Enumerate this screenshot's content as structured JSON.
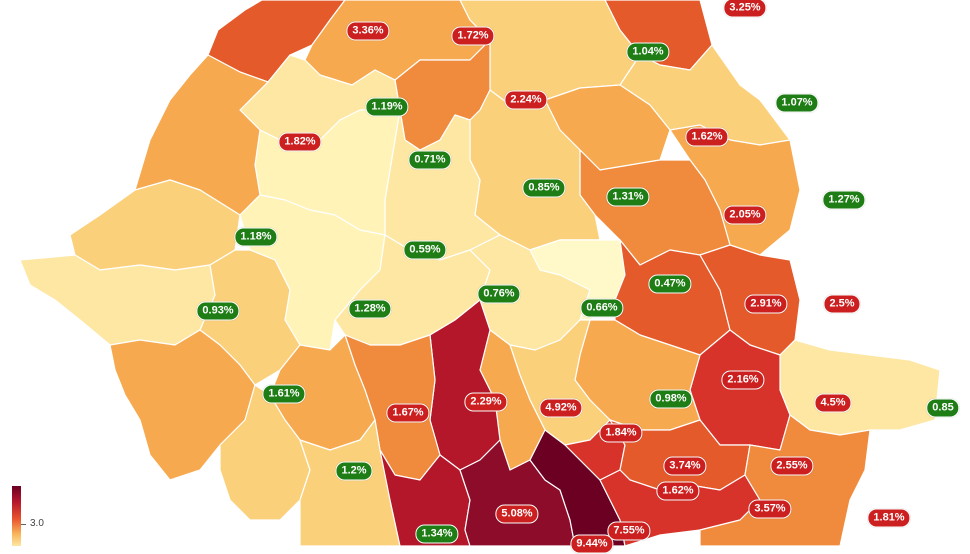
{
  "legend": {
    "tick_label": "3.0"
  },
  "colors": {
    "up_badge": "#cc1f1f",
    "down_badge": "#1e7d14",
    "very_light": "#fff8c8",
    "light": "#fde7a3",
    "light_orange": "#fbd07a",
    "orange": "#f6a94f",
    "dark_orange": "#f08a3c",
    "red_orange": "#e55a2a",
    "red": "#d8332a",
    "dark_red": "#b5172a",
    "crimson": "#8c0c2a",
    "maroon": "#6b0023"
  },
  "badges": [
    {
      "label": "3.36%",
      "trend": "up"
    },
    {
      "label": "1.72%",
      "trend": "up"
    },
    {
      "label": "3.25%",
      "trend": "up"
    },
    {
      "label": "1.04%",
      "trend": "down"
    },
    {
      "label": "1.19%",
      "trend": "down"
    },
    {
      "label": "2.24%",
      "trend": "up"
    },
    {
      "label": "1.07%",
      "trend": "down"
    },
    {
      "label": "1.82%",
      "trend": "up"
    },
    {
      "label": "1.62%",
      "trend": "up"
    },
    {
      "label": "0.71%",
      "trend": "down"
    },
    {
      "label": "0.85%",
      "trend": "down"
    },
    {
      "label": "1.31%",
      "trend": "down"
    },
    {
      "label": "1.27%",
      "trend": "down"
    },
    {
      "label": "2.05%",
      "trend": "up"
    },
    {
      "label": "1.18%",
      "trend": "down"
    },
    {
      "label": "0.59%",
      "trend": "down"
    },
    {
      "label": "0.76%",
      "trend": "down"
    },
    {
      "label": "0.47%",
      "trend": "down"
    },
    {
      "label": "0.66%",
      "trend": "down"
    },
    {
      "label": "0.93%",
      "trend": "down"
    },
    {
      "label": "1.28%",
      "trend": "down"
    },
    {
      "label": "2.91%",
      "trend": "up"
    },
    {
      "label": "2.5%",
      "trend": "up"
    },
    {
      "label": "2.16%",
      "trend": "up"
    },
    {
      "label": "1.61%",
      "trend": "down"
    },
    {
      "label": "1.67%",
      "trend": "up"
    },
    {
      "label": "2.29%",
      "trend": "up"
    },
    {
      "label": "4.92%",
      "trend": "up"
    },
    {
      "label": "0.98%",
      "trend": "down"
    },
    {
      "label": "4.5%",
      "trend": "up"
    },
    {
      "label": "0.85",
      "trend": "down"
    },
    {
      "label": "1.84%",
      "trend": "up"
    },
    {
      "label": "3.74%",
      "trend": "up"
    },
    {
      "label": "2.55%",
      "trend": "up"
    },
    {
      "label": "1.2%",
      "trend": "down"
    },
    {
      "label": "1.62%",
      "trend": "up"
    },
    {
      "label": "5.08%",
      "trend": "up"
    },
    {
      "label": "3.57%",
      "trend": "up"
    },
    {
      "label": "1.81%",
      "trend": "up"
    },
    {
      "label": "1.34%",
      "trend": "down"
    },
    {
      "label": "7.55%",
      "trend": "up"
    },
    {
      "label": "9.44%",
      "trend": "up"
    }
  ]
}
